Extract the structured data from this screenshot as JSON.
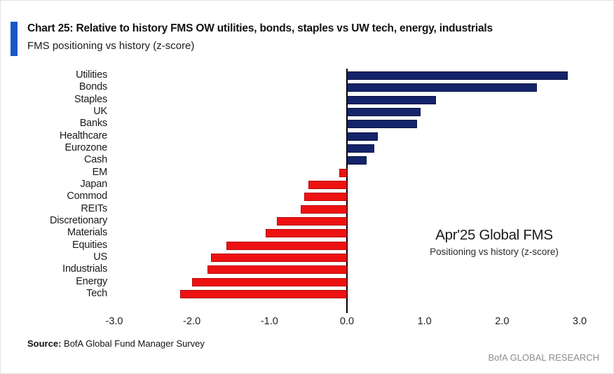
{
  "header": {
    "title": "Chart 25: Relative to history FMS OW utilities, bonds, staples vs UW tech, energy, industrials",
    "subtitle": "FMS positioning vs history (z-score)",
    "accent_color": "#1758c8"
  },
  "chart_data": {
    "type": "bar",
    "orientation": "horizontal",
    "title": "Chart 25: Relative to history FMS OW utilities, bonds, staples vs UW tech, energy, industrials",
    "subtitle": "FMS positioning vs history (z-score)",
    "categories": [
      "Utilities",
      "Bonds",
      "Staples",
      "UK",
      "Banks",
      "Healthcare",
      "Eurozone",
      "Cash",
      "EM",
      "Japan",
      "Commod",
      "REITs",
      "Discretionary",
      "Materials",
      "Equities",
      "US",
      "Industrials",
      "Energy",
      "Tech"
    ],
    "values": [
      2.85,
      2.45,
      1.15,
      0.95,
      0.9,
      0.4,
      0.35,
      0.25,
      -0.1,
      -0.5,
      -0.55,
      -0.6,
      -0.9,
      -1.05,
      -1.55,
      -1.75,
      -1.8,
      -2.0,
      -2.15
    ],
    "xlim": [
      -3.0,
      3.0
    ],
    "x_tick_labels": [
      "-3.0",
      "-2.0",
      "-1.0",
      "0.0",
      "1.0",
      "2.0",
      "3.0"
    ],
    "x_tick_values": [
      -3,
      -2,
      -1,
      0,
      1,
      2,
      3
    ],
    "xlabel": "",
    "ylabel": "",
    "grid": false,
    "legend": "none",
    "positive_color": "#14246b",
    "positive_border": "#0a1340",
    "negative_color": "#ee1111",
    "negative_border": "#b30c0c",
    "annotation": {
      "line1": "Apr'25 Global FMS",
      "line2": "Positioning vs history (z-score)"
    }
  },
  "footer": {
    "source_label": "Source:",
    "source_text": " BofA Global Fund Manager Survey",
    "branding": "BofA GLOBAL RESEARCH"
  }
}
